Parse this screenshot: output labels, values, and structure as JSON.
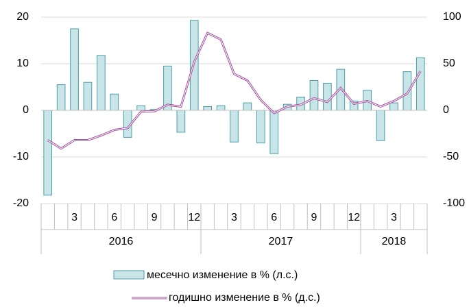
{
  "chart_data": {
    "type": "bar_line",
    "categories": [
      null,
      null,
      "3",
      null,
      null,
      "6",
      null,
      null,
      "9",
      null,
      null,
      "12",
      null,
      null,
      "3",
      null,
      null,
      "6",
      null,
      null,
      "9",
      null,
      null,
      "12",
      null,
      null,
      "3",
      null,
      null
    ],
    "groups": [
      "2016",
      "2017",
      "2018"
    ],
    "series": [
      {
        "name": "месечно изменение в % (л.с.)",
        "type": "bar",
        "color": "#c8e5e8",
        "edge": "#4b9daa",
        "values": [
          -18.2,
          5.5,
          17.5,
          6,
          11.8,
          3.5,
          -5.8,
          1,
          0.2,
          9.5,
          -4.7,
          19.3,
          0.8,
          1,
          -6.8,
          1.6,
          -7,
          -9.3,
          1.3,
          2.8,
          6.4,
          5.8,
          8.8,
          2,
          4.3,
          -6.5,
          1.6,
          8.3,
          11.3
        ]
      },
      {
        "name": "годишно изменение в % (д.с.)",
        "type": "line",
        "axis": "y2",
        "color": "#a4509f",
        "values": [
          -32,
          -41,
          -32,
          -32,
          -27,
          -21,
          -19,
          -1.5,
          -1,
          6,
          4,
          52,
          83,
          76,
          39,
          32,
          11,
          -3,
          4,
          6,
          13,
          9,
          24,
          7,
          10,
          4,
          10,
          18,
          42
        ]
      }
    ],
    "ylim": [
      -20,
      20
    ],
    "yticks": [
      -20,
      -10,
      0,
      10,
      20
    ],
    "y2lim": [
      -100,
      100
    ],
    "y2ticks": [
      -100,
      -50,
      0,
      50,
      100
    ]
  }
}
